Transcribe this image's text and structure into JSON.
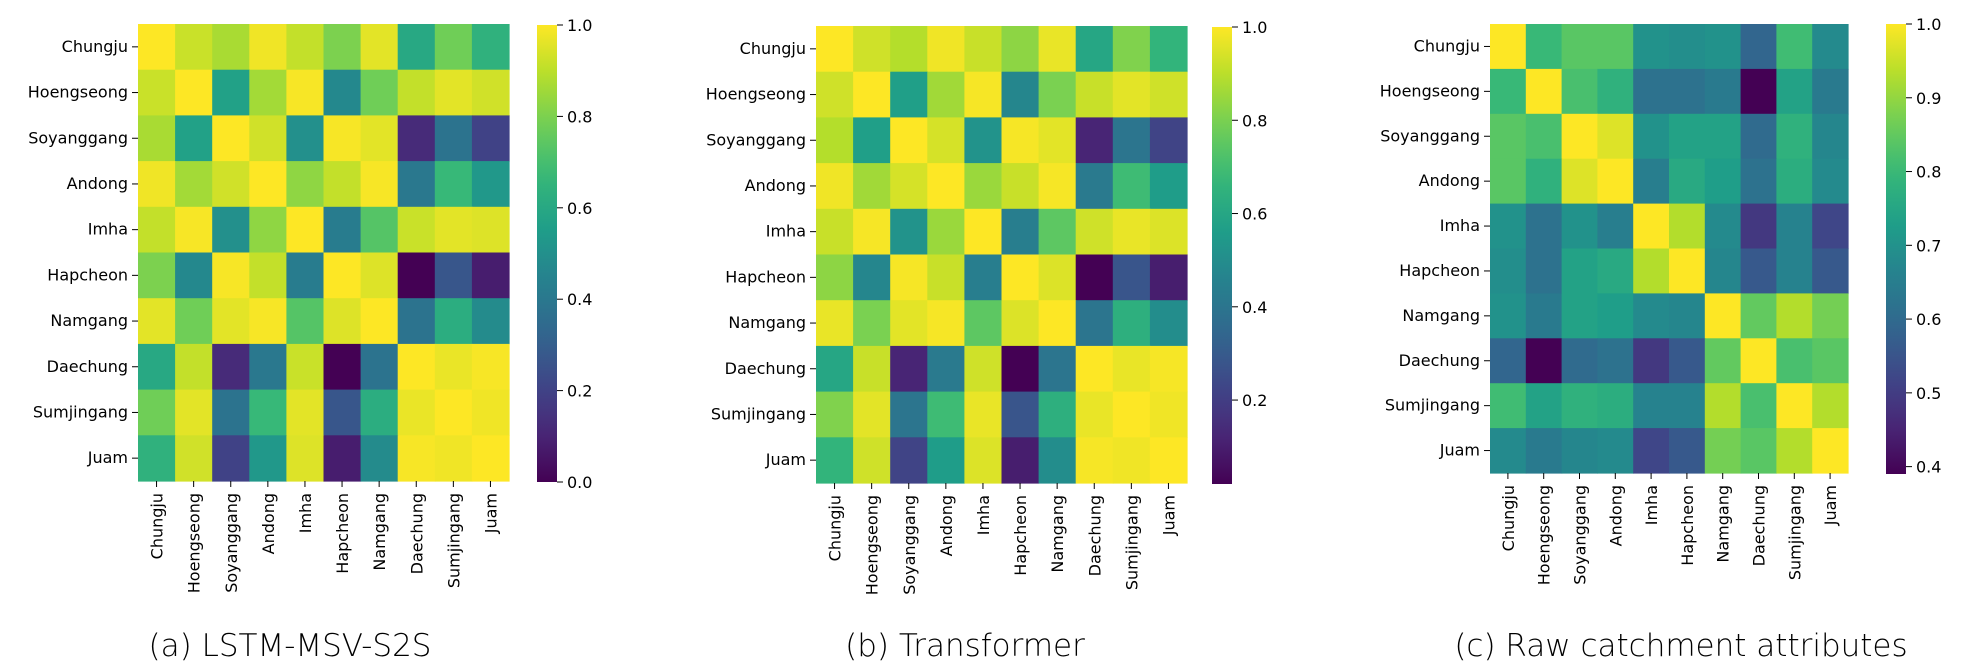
{
  "colormap": {
    "name": "viridis",
    "stops": [
      "#440154",
      "#482878",
      "#3e4989",
      "#31688e",
      "#26828e",
      "#1f9e89",
      "#35b779",
      "#6ece58",
      "#b5de2b",
      "#fde725"
    ]
  },
  "chart_data": [
    {
      "type": "heatmap",
      "caption": "(a) LSTM-MSV-S2S",
      "categories": [
        "Chungju",
        "Hoengseong",
        "Soyanggang",
        "Andong",
        "Imha",
        "Hapcheon",
        "Namgang",
        "Daechung",
        "Sumjingang",
        "Juam"
      ],
      "vmin": 0.0,
      "vmax": 1.0,
      "colorbar_ticks": [
        0.0,
        0.2,
        0.4,
        0.6,
        0.8,
        1.0
      ],
      "colorbar_labels": [
        "0.0",
        "0.2",
        "0.4",
        "0.6",
        "0.8",
        "1.0"
      ],
      "values": [
        [
          1.0,
          0.92,
          0.87,
          0.98,
          0.91,
          0.8,
          0.96,
          0.6,
          0.78,
          0.64
        ],
        [
          0.92,
          1.0,
          0.57,
          0.86,
          0.99,
          0.47,
          0.78,
          0.91,
          0.96,
          0.93
        ],
        [
          0.87,
          0.57,
          1.0,
          0.93,
          0.5,
          0.99,
          0.96,
          0.12,
          0.38,
          0.2
        ],
        [
          0.98,
          0.86,
          0.93,
          1.0,
          0.83,
          0.91,
          0.99,
          0.4,
          0.67,
          0.53
        ],
        [
          0.91,
          0.99,
          0.5,
          0.83,
          1.0,
          0.42,
          0.73,
          0.92,
          0.96,
          0.95
        ],
        [
          0.8,
          0.47,
          0.99,
          0.91,
          0.42,
          1.0,
          0.95,
          0.0,
          0.27,
          0.08
        ],
        [
          0.96,
          0.78,
          0.96,
          0.99,
          0.73,
          0.95,
          1.0,
          0.38,
          0.62,
          0.48
        ],
        [
          0.6,
          0.91,
          0.12,
          0.4,
          0.92,
          0.0,
          0.38,
          1.0,
          0.97,
          0.99
        ],
        [
          0.78,
          0.96,
          0.38,
          0.67,
          0.96,
          0.27,
          0.62,
          0.97,
          1.0,
          0.98
        ],
        [
          0.64,
          0.93,
          0.2,
          0.53,
          0.95,
          0.08,
          0.48,
          0.99,
          0.98,
          1.0
        ]
      ]
    },
    {
      "type": "heatmap",
      "caption": "(b) Transformer",
      "categories": [
        "Chungju",
        "Hoengseong",
        "Soyanggang",
        "Andong",
        "Imha",
        "Hapcheon",
        "Namgang",
        "Daechung",
        "Sumjingang",
        "Juam"
      ],
      "vmin": 0.02,
      "vmax": 1.0,
      "colorbar_ticks": [
        0.2,
        0.4,
        0.6,
        0.8,
        1.0
      ],
      "colorbar_labels": [
        "0.2",
        "0.4",
        "0.6",
        "0.8",
        "1.0"
      ],
      "values": [
        [
          1.0,
          0.93,
          0.89,
          0.98,
          0.92,
          0.83,
          0.97,
          0.6,
          0.81,
          0.66
        ],
        [
          0.93,
          1.0,
          0.57,
          0.86,
          0.99,
          0.47,
          0.8,
          0.92,
          0.96,
          0.93
        ],
        [
          0.89,
          0.57,
          1.0,
          0.94,
          0.52,
          0.99,
          0.96,
          0.12,
          0.4,
          0.22
        ],
        [
          0.98,
          0.86,
          0.94,
          1.0,
          0.85,
          0.92,
          0.99,
          0.42,
          0.69,
          0.56
        ],
        [
          0.92,
          0.99,
          0.52,
          0.85,
          1.0,
          0.44,
          0.75,
          0.93,
          0.97,
          0.95
        ],
        [
          0.83,
          0.47,
          0.99,
          0.92,
          0.44,
          1.0,
          0.95,
          0.02,
          0.28,
          0.1
        ],
        [
          0.97,
          0.8,
          0.96,
          0.99,
          0.75,
          0.95,
          1.0,
          0.4,
          0.64,
          0.5
        ],
        [
          0.6,
          0.92,
          0.12,
          0.42,
          0.93,
          0.02,
          0.4,
          1.0,
          0.97,
          0.99
        ],
        [
          0.81,
          0.96,
          0.4,
          0.69,
          0.97,
          0.28,
          0.64,
          0.97,
          1.0,
          0.98
        ],
        [
          0.66,
          0.93,
          0.22,
          0.56,
          0.95,
          0.1,
          0.5,
          0.99,
          0.98,
          1.0
        ]
      ]
    },
    {
      "type": "heatmap",
      "caption": "(c) Raw catchment attributes",
      "categories": [
        "Chungju",
        "Hoengseong",
        "Soyanggang",
        "Andong",
        "Imha",
        "Hapcheon",
        "Namgang",
        "Daechung",
        "Sumjingang",
        "Juam"
      ],
      "vmin": 0.39,
      "vmax": 1.0,
      "colorbar_ticks": [
        0.4,
        0.5,
        0.6,
        0.7,
        0.8,
        0.9,
        1.0
      ],
      "colorbar_labels": [
        "0.4",
        "0.5",
        "0.6",
        "0.7",
        "0.8",
        "0.9",
        "1.0"
      ],
      "values": [
        [
          1.0,
          0.8,
          0.84,
          0.84,
          0.7,
          0.69,
          0.7,
          0.59,
          0.81,
          0.68
        ],
        [
          0.8,
          1.0,
          0.82,
          0.78,
          0.62,
          0.62,
          0.64,
          0.39,
          0.74,
          0.64
        ],
        [
          0.84,
          0.82,
          1.0,
          0.97,
          0.7,
          0.74,
          0.74,
          0.6,
          0.78,
          0.67
        ],
        [
          0.84,
          0.78,
          0.97,
          1.0,
          0.65,
          0.76,
          0.73,
          0.62,
          0.77,
          0.68
        ],
        [
          0.7,
          0.62,
          0.7,
          0.65,
          1.0,
          0.93,
          0.68,
          0.49,
          0.66,
          0.52
        ],
        [
          0.69,
          0.62,
          0.74,
          0.76,
          0.93,
          1.0,
          0.67,
          0.56,
          0.66,
          0.56
        ],
        [
          0.7,
          0.64,
          0.74,
          0.73,
          0.68,
          0.67,
          1.0,
          0.85,
          0.93,
          0.87
        ],
        [
          0.59,
          0.39,
          0.6,
          0.62,
          0.49,
          0.56,
          0.85,
          1.0,
          0.82,
          0.84
        ],
        [
          0.81,
          0.74,
          0.78,
          0.77,
          0.66,
          0.66,
          0.93,
          0.82,
          1.0,
          0.93
        ],
        [
          0.68,
          0.64,
          0.67,
          0.68,
          0.52,
          0.56,
          0.87,
          0.84,
          0.93,
          1.0
        ]
      ]
    }
  ]
}
